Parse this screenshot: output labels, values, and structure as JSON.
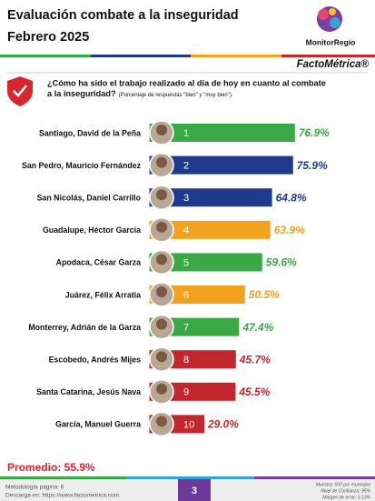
{
  "chart_data": {
    "type": "bar",
    "orientation": "horizontal",
    "title": "Evaluación combate a la inseguridad",
    "subtitle": "Febrero 2025",
    "brand": "MonitorRegio",
    "brand_secondary": "FactoMétrica®",
    "question_lines": [
      "¿Cómo ha sido el trabajo realizado al día de hoy en cuanto al combate",
      "a la inseguridad?"
    ],
    "question_note": "(Porcentaje de respuestas \"bien\" y \"muy bien\").",
    "categories": [
      "Santiago, David de la Peña",
      "San Pedro, Mauricio Fernández",
      "San Nicolás, Daniel Carrillo",
      "Guadalupe, Héctor García",
      "Apodaca, César Garza",
      "Juárez, Félix Arratia",
      "Monterrey, Adrián de la Garza",
      "Escobedo, Andrés Mijes",
      "Santa Catarina, Jesús Nava",
      "García, Manuel Guerra"
    ],
    "ranks": [
      1,
      2,
      3,
      4,
      5,
      6,
      7,
      8,
      9,
      10
    ],
    "values": [
      76.9,
      75.9,
      64.8,
      63.9,
      59.6,
      50.5,
      47.4,
      45.7,
      45.5,
      29.0
    ],
    "value_labels": [
      "76.9%",
      "75.9%",
      "64.8%",
      "63.9%",
      "59.6%",
      "50.5%",
      "47.4%",
      "45.7%",
      "45.5%",
      "29.0%"
    ],
    "colors": [
      "#3aa845",
      "#1f3a8c",
      "#1f3a8c",
      "#f3a21f",
      "#3aa845",
      "#f3a21f",
      "#3aa845",
      "#c1272d",
      "#c1272d",
      "#c1272d"
    ],
    "xlim": [
      0,
      100
    ],
    "average_text": "Promedio: 55.9%",
    "footer": {
      "methodology": "Metodología página: 6",
      "download": "Descarga en: https://www.factometrica.com",
      "page": "3",
      "sample": "Muestra: 600 por municipio",
      "confidence": "Nivel de Confianza: 95%",
      "error": "Margen de error: 5.13%"
    }
  }
}
